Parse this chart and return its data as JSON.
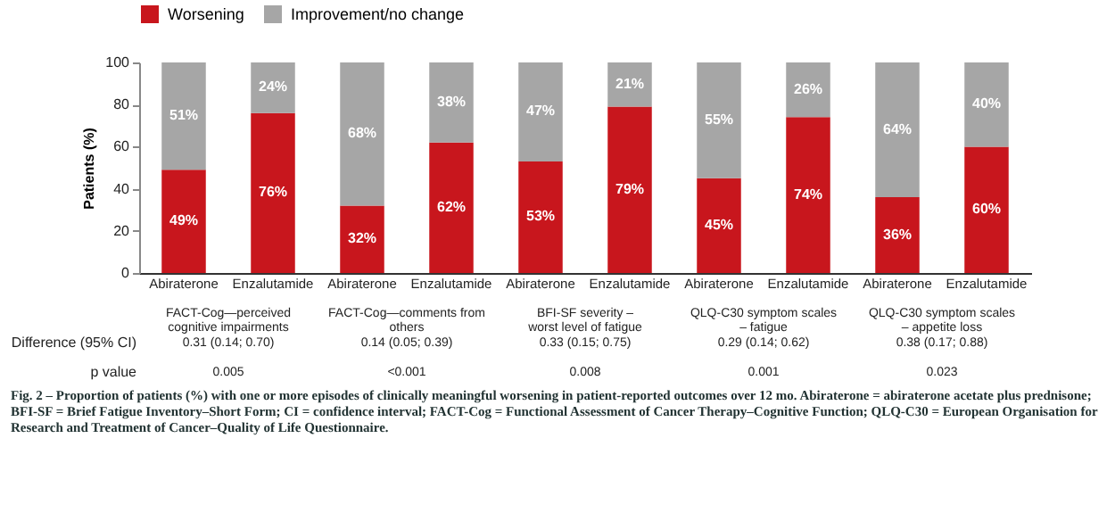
{
  "chart_data": {
    "type": "bar",
    "stacked": true,
    "ylabel": "Patients (%)",
    "categories": [
      "Abiraterone",
      "Enzalutamide",
      "Abiraterone",
      "Enzalutamide",
      "Abiraterone",
      "Enzalutamide",
      "Abiraterone",
      "Enzalutamide",
      "Abiraterone",
      "Enzalutamide"
    ],
    "series": [
      {
        "name": "Worsening",
        "color": "#c8161d",
        "values": [
          49,
          76,
          32,
          62,
          53,
          79,
          45,
          74,
          36,
          60
        ],
        "value_labels": [
          "49%",
          "76%",
          "32%",
          "62%",
          "53%",
          "79%",
          "45%",
          "74%",
          "36%",
          "60%"
        ]
      },
      {
        "name": "Improvement/no change",
        "color": "#a6a6a6",
        "values": [
          51,
          24,
          68,
          38,
          47,
          21,
          55,
          26,
          64,
          40
        ],
        "value_labels": [
          "51%",
          "24%",
          "68%",
          "38%",
          "47%",
          "21%",
          "55%",
          "26%",
          "64%",
          "40%"
        ]
      }
    ],
    "ylim": [
      0,
      100
    ],
    "yticks": [
      0,
      20,
      40,
      60,
      80,
      100
    ],
    "grid": false,
    "legend": "top",
    "annotations": [
      "FACT-Cog—perceived cognitive impairments",
      "FACT-Cog—comments from others",
      "BFI-SF severity – worst level of fatigue",
      "QLQ-C30 symptom scales – fatigue",
      "QLQ-C30 symptom scales – appetite loss",
      "Difference (95% CI)",
      "0.31 (0.14; 0.70)",
      "0.14 (0.05; 0.39)",
      "0.33 (0.15; 0.75)",
      "0.29 (0.14; 0.62)",
      "0.38 (0.17; 0.88)",
      "p value",
      "0.005",
      "<0.001",
      "0.008",
      "0.001",
      "0.023",
      "Fig. 2 – Proportion of patients (%) with one or more episodes of clinically meaningful worsening in patient-reported outcomes over 12 mo. Abiraterone = abiraterone acetate plus prednisone; BFI-SF = Brief Fatigue Inventory–Short Form; CI = confidence interval; FACT-Cog = Functional Assessment of Cancer Therapy–Cognitive Function; QLQ-C30 = European Organisation for Research and Treatment of Cancer–Quality of Life Questionnaire."
    ]
  }
}
